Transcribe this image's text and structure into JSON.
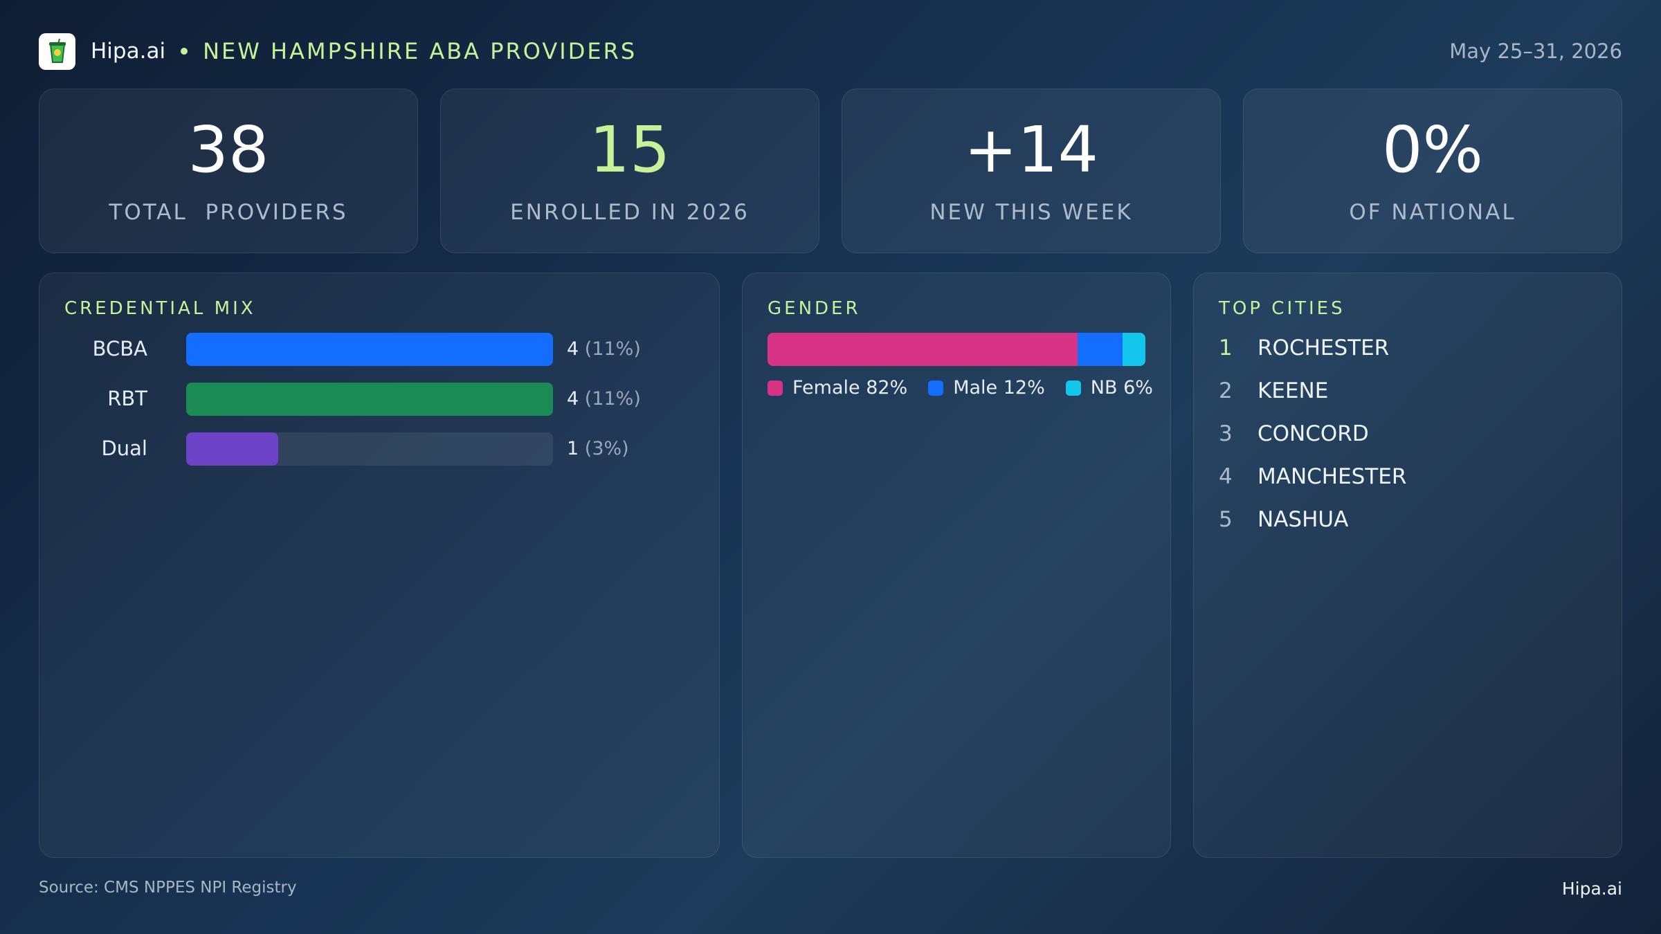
{
  "header": {
    "brand": "Hipa.ai",
    "title": "NEW HAMPSHIRE ABA PROVIDERS",
    "date_range": "May 25–31, 2026",
    "logo_icon": "cup-icon"
  },
  "stats": [
    {
      "value": "38",
      "label": "TOTAL  PROVIDERS"
    },
    {
      "value": "15",
      "label": "ENROLLED IN 2026"
    },
    {
      "value": "+14",
      "label": "NEW THIS WEEK"
    },
    {
      "value": "0%",
      "label": "OF NATIONAL"
    }
  ],
  "credential_mix": {
    "title": "CREDENTIAL MIX",
    "items": [
      {
        "label": "BCBA",
        "count": "4",
        "pct": "(11%)",
        "fill": 1.0,
        "color": "#136dff"
      },
      {
        "label": "RBT",
        "count": "4",
        "pct": "(11%)",
        "fill": 1.0,
        "color": "#1c8a54"
      },
      {
        "label": "Dual",
        "count": "1",
        "pct": "(3%)",
        "fill": 0.25,
        "color": "#6c43c7"
      }
    ]
  },
  "gender": {
    "title": "GENDER",
    "segments": [
      {
        "label": "Female 82%",
        "share": 82,
        "color": "#d63384"
      },
      {
        "label": "Male 12%",
        "share": 12,
        "color": "#136dff"
      },
      {
        "label": "NB 6%",
        "share": 6,
        "color": "#14c6ec"
      }
    ]
  },
  "top_cities": {
    "title": "TOP CITIES",
    "items": [
      {
        "rank": "1",
        "name": "ROCHESTER"
      },
      {
        "rank": "2",
        "name": "KEENE"
      },
      {
        "rank": "3",
        "name": "CONCORD"
      },
      {
        "rank": "4",
        "name": "MANCHESTER"
      },
      {
        "rank": "5",
        "name": "NASHUA"
      }
    ]
  },
  "footer": {
    "source": "Source: CMS NPPES NPI Registry",
    "brand": "Hipa.ai"
  }
}
